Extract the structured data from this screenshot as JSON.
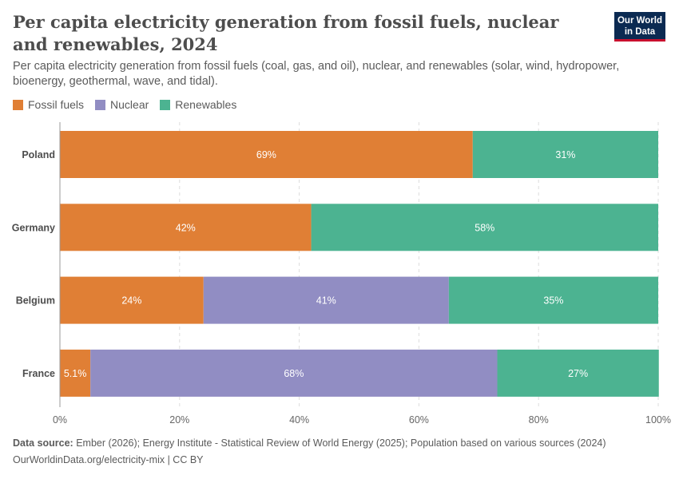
{
  "header": {
    "title": "Per capita electricity generation from fossil fuels, nuclear and renewables, 2024",
    "subtitle": "Per capita electricity generation from fossil fuels (coal, gas, and oil), nuclear, and renewables (solar, wind, hydropower, bioenergy, geothermal, wave, and tidal).",
    "logo_line1": "Our World",
    "logo_line2": "in Data"
  },
  "colors": {
    "fossil": "#e07f35",
    "nuclear": "#918dc3",
    "renewables": "#4cb391",
    "grid": "#dddddd",
    "axis_text": "#666666"
  },
  "chart_data": {
    "type": "bar",
    "orientation": "horizontal",
    "stacked": true,
    "categories": [
      "Poland",
      "Germany",
      "Belgium",
      "France"
    ],
    "series": [
      {
        "name": "Fossil fuels",
        "values": [
          69,
          42,
          24,
          5.1
        ],
        "labels": [
          "69%",
          "42%",
          "24%",
          "5.1%"
        ]
      },
      {
        "name": "Nuclear",
        "values": [
          0,
          0,
          41,
          68
        ],
        "labels": [
          "",
          "",
          "41%",
          "68%"
        ]
      },
      {
        "name": "Renewables",
        "values": [
          31,
          58,
          35,
          27
        ],
        "labels": [
          "31%",
          "58%",
          "35%",
          "27%"
        ]
      }
    ],
    "xlim": [
      0,
      100
    ],
    "xticks": [
      0,
      20,
      40,
      60,
      80,
      100
    ],
    "xtick_labels": [
      "0%",
      "20%",
      "40%",
      "60%",
      "80%",
      "100%"
    ],
    "grid": true,
    "legend_position": "top-left"
  },
  "footer": {
    "source_label": "Data source:",
    "source_text": "Ember (2026); Energy Institute - Statistical Review of World Energy (2025); Population based on various sources (2024)",
    "url_text": "OurWorldinData.org/electricity-mix | CC BY"
  }
}
